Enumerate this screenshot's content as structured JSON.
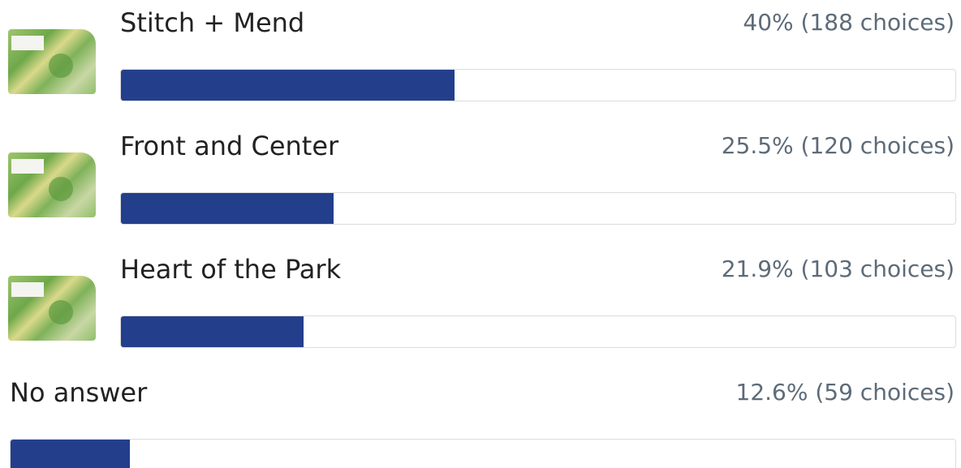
{
  "options": [
    {
      "label": "Stitch + Mend",
      "result": "40% (188 choices)",
      "percent": 40
    },
    {
      "label": "Front and Center",
      "result": "25.5% (120 choices)",
      "percent": 25.5
    },
    {
      "label": "Heart of the Park",
      "result": "21.9% (103 choices)",
      "percent": 21.9
    },
    {
      "label": "No answer",
      "result": "12.6% (59 choices)",
      "percent": 12.6
    }
  ]
}
